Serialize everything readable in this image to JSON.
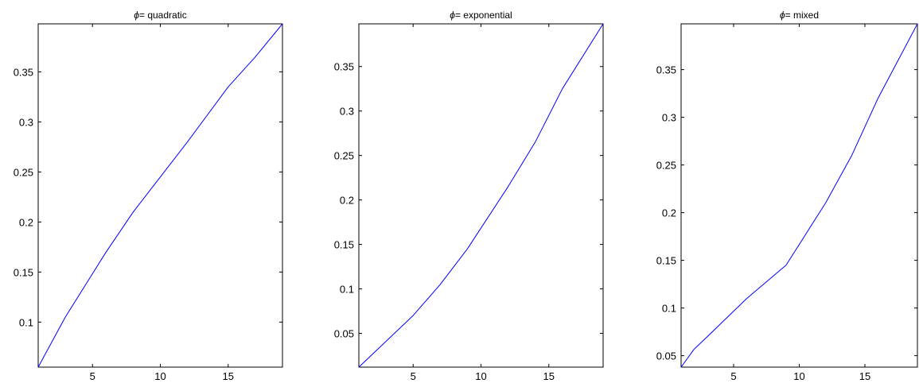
{
  "chart_data": [
    {
      "type": "line",
      "title_symbol": "ϕ",
      "title": "= quadratic",
      "xlim": [
        1,
        19
      ],
      "ylim": [
        0.055,
        0.398
      ],
      "x_ticks": [
        5,
        10,
        15
      ],
      "x_tick_labels": [
        "5",
        "10",
        "15"
      ],
      "y_ticks": [
        0.1,
        0.15,
        0.2,
        0.25,
        0.3,
        0.35
      ],
      "y_tick_labels": [
        "0.1",
        "0.15",
        "0.2",
        "0.25",
        "0.3",
        "0.35"
      ],
      "grid": false,
      "line_color": "#0000ff",
      "series": [
        {
          "x": [
            1,
            3,
            6,
            8,
            10,
            12,
            15,
            17,
            19
          ],
          "y": [
            0.055,
            0.105,
            0.17,
            0.21,
            0.245,
            0.28,
            0.335,
            0.365,
            0.398
          ]
        }
      ]
    },
    {
      "type": "line",
      "title_symbol": "ϕ",
      "title": "= exponential",
      "xlim": [
        1,
        19
      ],
      "ylim": [
        0.012,
        0.398
      ],
      "x_ticks": [
        5,
        10,
        15
      ],
      "x_tick_labels": [
        "5",
        "10",
        "15"
      ],
      "y_ticks": [
        0.05,
        0.1,
        0.15,
        0.2,
        0.25,
        0.3,
        0.35
      ],
      "y_tick_labels": [
        "0.05",
        "0.1",
        "0.15",
        "0.2",
        "0.25",
        "0.3",
        "0.35"
      ],
      "grid": false,
      "line_color": "#0000ff",
      "series": [
        {
          "x": [
            1,
            5,
            7,
            9,
            12,
            14,
            16,
            19
          ],
          "y": [
            0.012,
            0.07,
            0.105,
            0.145,
            0.215,
            0.265,
            0.325,
            0.398
          ]
        }
      ]
    },
    {
      "type": "line",
      "title_symbol": "ϕ",
      "title": "= mixed",
      "xlim": [
        1,
        19
      ],
      "ylim": [
        0.038,
        0.398
      ],
      "x_ticks": [
        5,
        10,
        15
      ],
      "x_tick_labels": [
        "5",
        "10",
        "15"
      ],
      "y_ticks": [
        0.05,
        0.1,
        0.15,
        0.2,
        0.25,
        0.3,
        0.35
      ],
      "y_tick_labels": [
        "0.05",
        "0.1",
        "0.15",
        "0.2",
        "0.25",
        "0.3",
        "0.35"
      ],
      "grid": false,
      "line_color": "#0000ff",
      "series": [
        {
          "x": [
            1,
            2,
            3,
            6,
            9,
            12,
            14,
            16,
            19
          ],
          "y": [
            0.038,
            0.057,
            0.07,
            0.11,
            0.145,
            0.21,
            0.26,
            0.32,
            0.398
          ]
        }
      ]
    }
  ]
}
